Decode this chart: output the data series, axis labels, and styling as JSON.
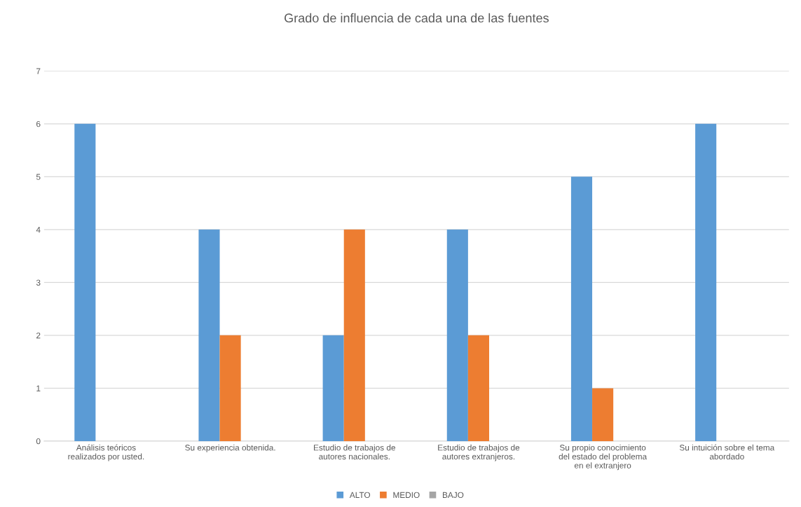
{
  "chart_data": {
    "type": "bar",
    "title": "Grado de influencia de cada una de las fuentes",
    "categories": [
      "Análisis teóricos\nrealizados por usted.",
      "Su experiencia obtenida.",
      "Estudio de trabajos de\nautores nacionales.",
      "Estudio de trabajos de\nautores extranjeros.",
      "Su propio conocimiento\ndel estado del problema\nen el extranjero",
      "Su intuición sobre el tema\nabordado"
    ],
    "series": [
      {
        "name": "ALTO",
        "color": "#5b9bd5",
        "values": [
          6,
          4,
          2,
          4,
          5,
          6
        ]
      },
      {
        "name": "MEDIO",
        "color": "#ed7d31",
        "values": [
          null,
          2,
          4,
          2,
          1,
          null
        ]
      },
      {
        "name": "BAJO",
        "color": "#a5a5a5",
        "values": [
          null,
          null,
          null,
          null,
          null,
          null
        ]
      }
    ],
    "ylim": [
      0,
      7
    ],
    "yticks": [
      0,
      1,
      2,
      3,
      4,
      5,
      6,
      7
    ],
    "grid": "y",
    "legend": "bottom"
  }
}
